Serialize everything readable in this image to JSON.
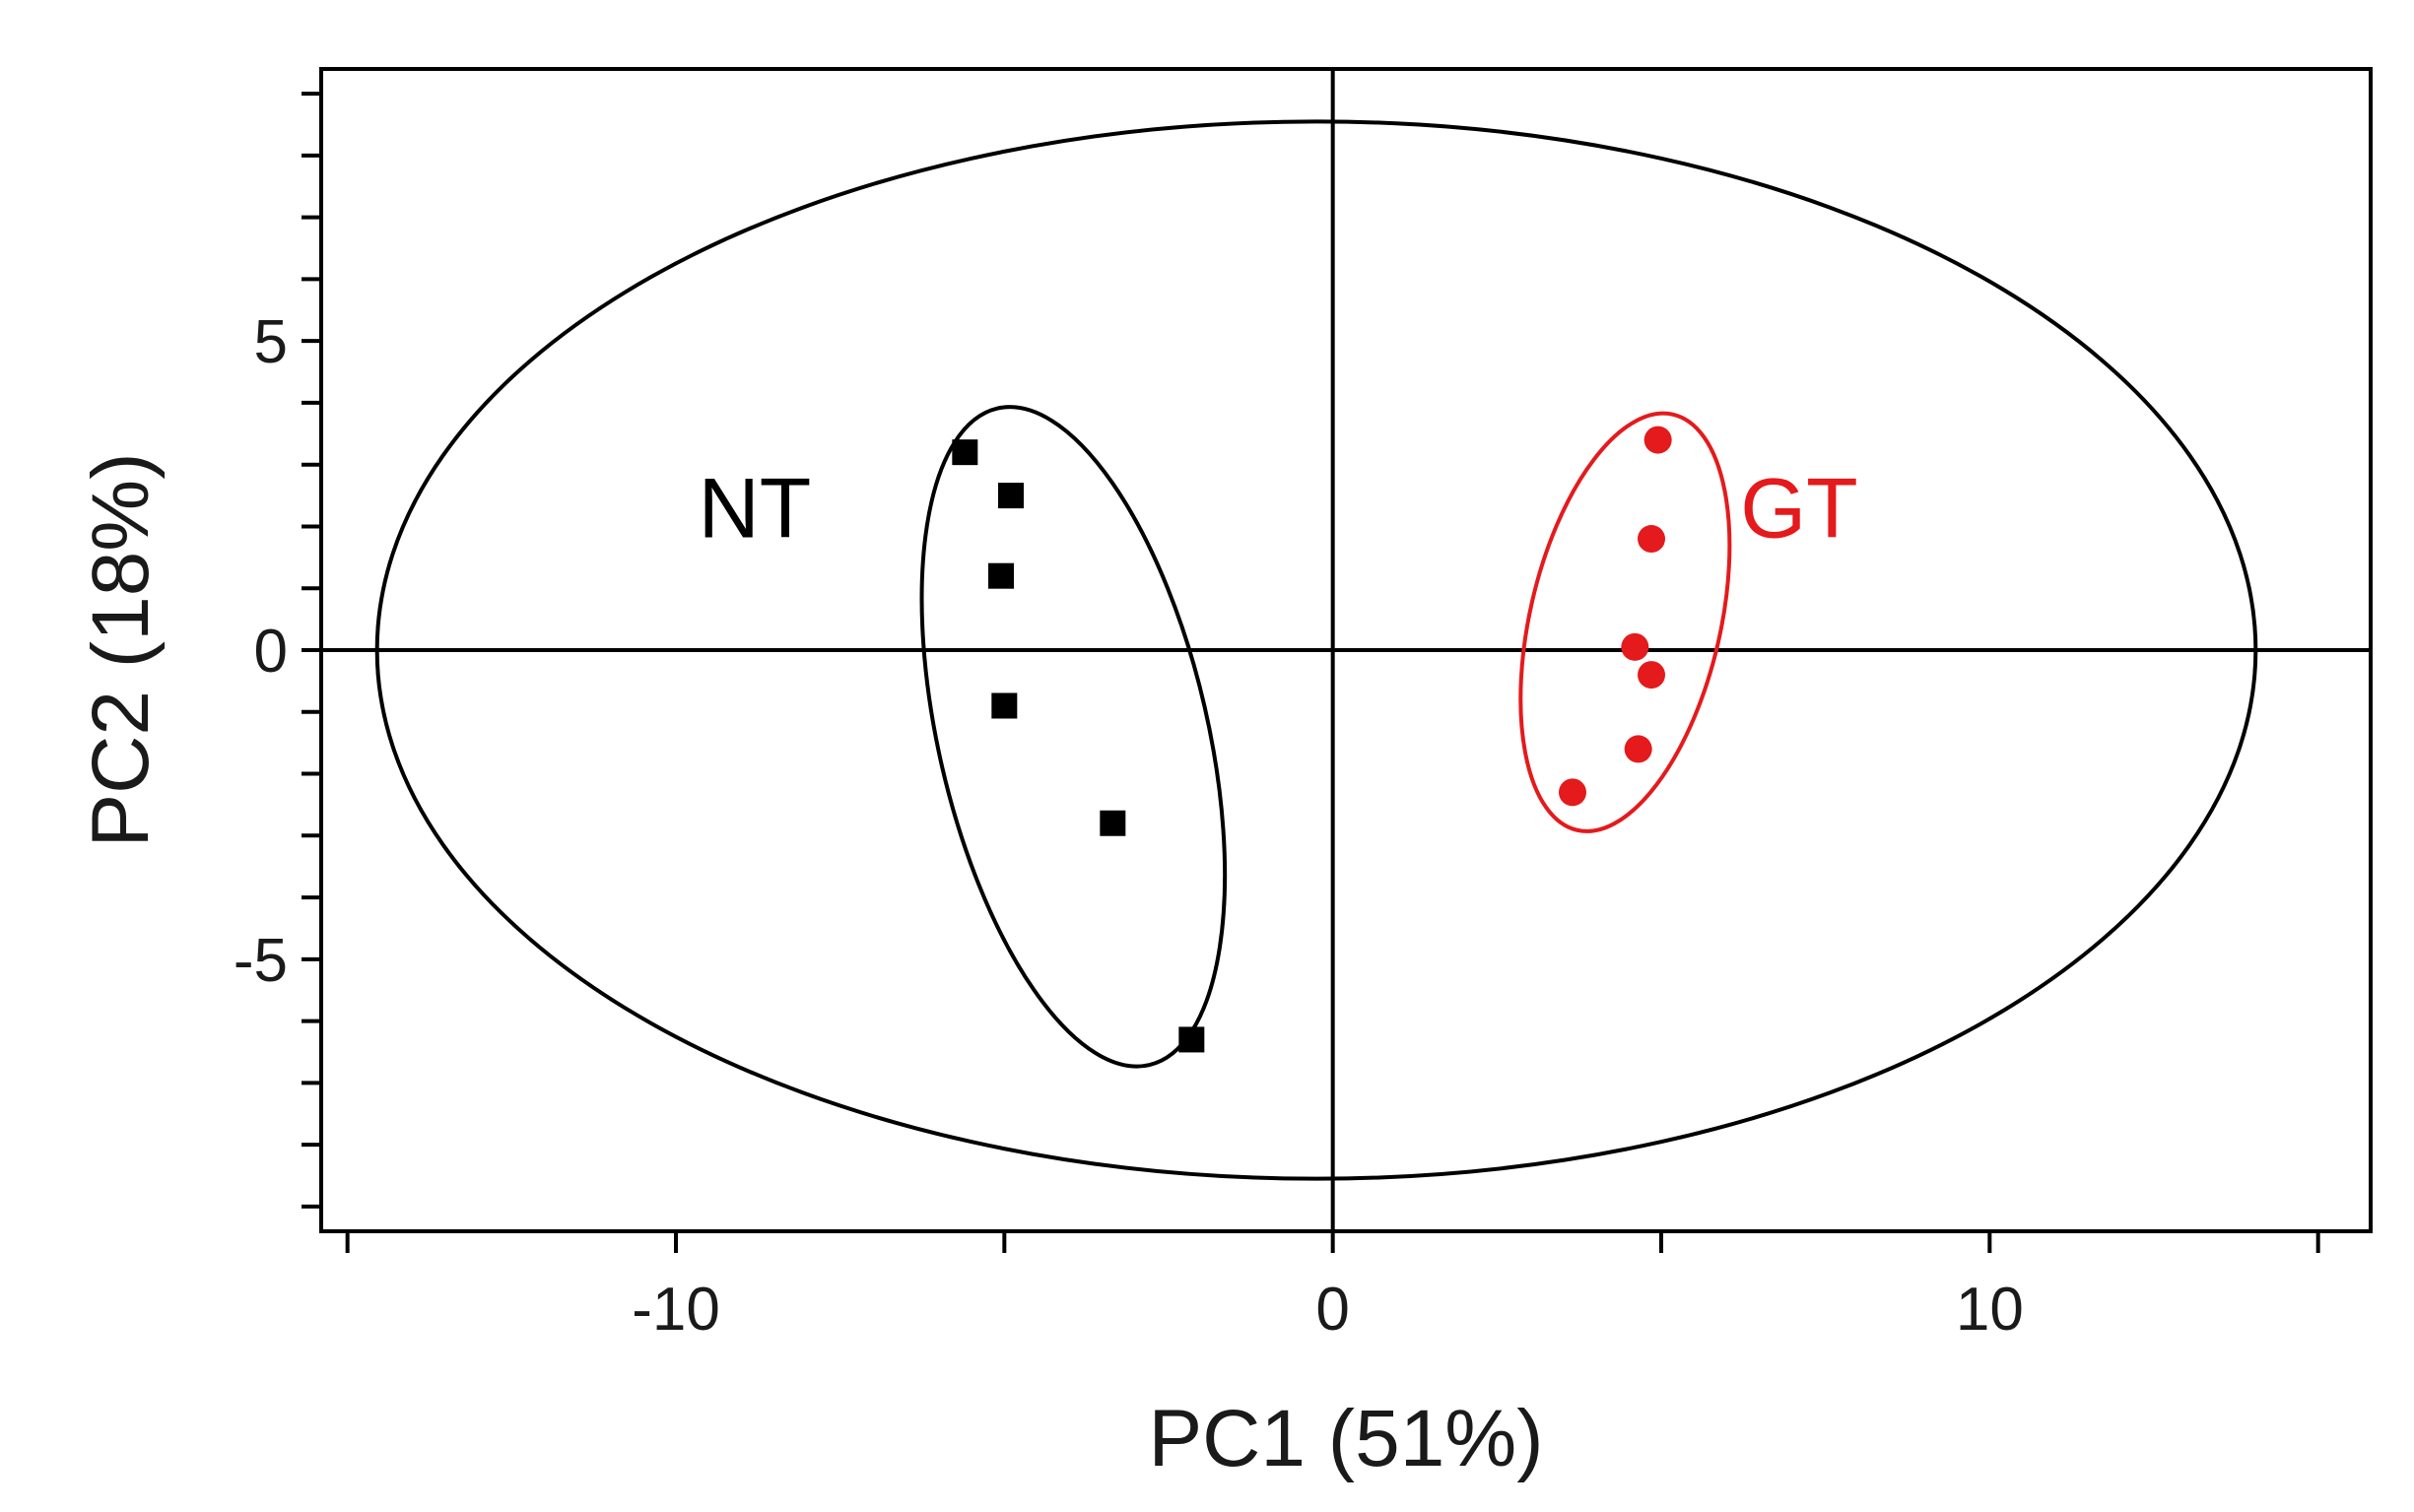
{
  "chart_data": {
    "type": "scatter",
    "title": "",
    "xlabel": "PC1 (51%)",
    "ylabel": "PC2 (18%)",
    "xlim": [
      -15.4,
      15.8
    ],
    "ylim": [
      -9.4,
      9.4
    ],
    "x_ticks": [
      -10,
      0,
      10
    ],
    "y_ticks": [
      -5,
      0,
      5
    ],
    "x_tick_labels": [
      "-10",
      "0",
      "10"
    ],
    "y_tick_labels": [
      "-5",
      "0",
      "5"
    ],
    "x_minor_ticks": [
      -15,
      -10,
      -5,
      0,
      5,
      10,
      15
    ],
    "y_minor_ticks": [
      -9,
      -8,
      -7,
      -6,
      -5,
      -4,
      -3,
      -2,
      -1,
      0,
      1,
      2,
      3,
      4,
      5,
      6,
      7,
      8,
      9
    ],
    "grid": false,
    "zero_lines": true,
    "hotelling_ellipse": {
      "center": [
        -0.25,
        0
      ],
      "rx": 14.3,
      "ry": 8.55,
      "color": "#000000"
    },
    "series": [
      {
        "name": "NT",
        "marker": "square",
        "color": "#000000",
        "points": [
          {
            "x": -5.6,
            "y": 3.2
          },
          {
            "x": -4.9,
            "y": 2.5
          },
          {
            "x": -5.05,
            "y": 1.2
          },
          {
            "x": -5.0,
            "y": -0.9
          },
          {
            "x": -3.35,
            "y": -2.8
          },
          {
            "x": -2.15,
            "y": -6.3
          }
        ],
        "ellipse": {
          "center": [
            -3.95,
            -1.4
          ],
          "rx": 2.05,
          "ry": 5.45,
          "angle_deg": -13,
          "color": "#000000"
        },
        "label": {
          "text": "NT",
          "x": -8.8,
          "y": 2.3
        }
      },
      {
        "name": "GT",
        "marker": "circle",
        "color": "#e41a1c",
        "points": [
          {
            "x": 4.95,
            "y": 3.4
          },
          {
            "x": 4.85,
            "y": 1.8
          },
          {
            "x": 4.6,
            "y": 0.05
          },
          {
            "x": 4.85,
            "y": -0.4
          },
          {
            "x": 4.65,
            "y": -1.6
          },
          {
            "x": 3.65,
            "y": -2.3
          }
        ],
        "ellipse": {
          "center": [
            4.45,
            0.45
          ],
          "rx": 1.45,
          "ry": 3.45,
          "angle_deg": 13,
          "color": "#e41a1c"
        },
        "label": {
          "text": "GT",
          "x": 7.1,
          "y": 2.3
        }
      }
    ]
  }
}
